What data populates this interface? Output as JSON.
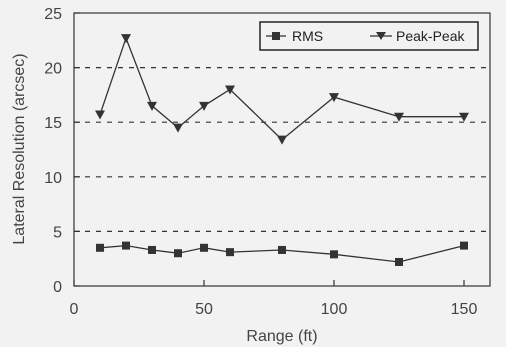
{
  "chart_data": {
    "type": "line",
    "xlabel": "Range (ft)",
    "ylabel": "Lateral Resolution (arcsec)",
    "xlim": [
      0,
      160
    ],
    "ylim": [
      0,
      25
    ],
    "x_ticks": [
      0,
      50,
      100,
      150
    ],
    "y_ticks": [
      0,
      5,
      10,
      15,
      20,
      25
    ],
    "grid": "dashed horizontal at 5, 10, 15, 20",
    "legend_position": "top-right",
    "series": [
      {
        "name": "RMS",
        "marker": "square",
        "x": [
          10,
          20,
          30,
          40,
          50,
          60,
          80,
          100,
          125,
          150
        ],
        "y": [
          3.5,
          3.7,
          3.3,
          3.0,
          3.5,
          3.1,
          3.3,
          2.9,
          2.2,
          3.7
        ]
      },
      {
        "name": "Peak-Peak",
        "marker": "triangle-down",
        "x": [
          10,
          20,
          30,
          40,
          50,
          60,
          80,
          100,
          125,
          150
        ],
        "y": [
          15.7,
          22.7,
          16.5,
          14.5,
          16.5,
          18.0,
          13.4,
          17.3,
          15.5,
          15.5
        ]
      }
    ]
  }
}
